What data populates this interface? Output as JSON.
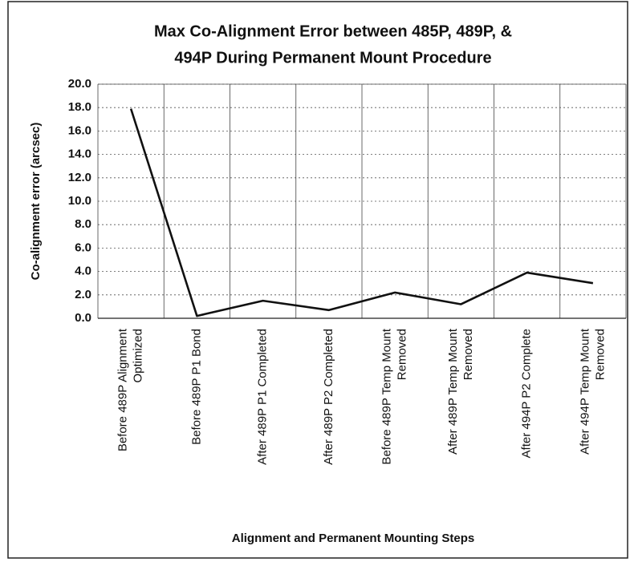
{
  "chart_data": {
    "type": "line",
    "title": [
      "Max Co-Alignment Error between 485P, 489P, &",
      "494P During Permanent Mount Procedure"
    ],
    "x_label": "Alignment and Permanent Mounting Steps",
    "y_label": "Co-alignment error (arcsec)",
    "categories": [
      "Before 489P Alignment Optimized",
      "Before 489P P1 Bond",
      "After 489P P1 Completed",
      "After 489P P2 Completed",
      "Before 489P Temp Mount Removed",
      "After 489P Temp Mount Removed",
      "After 494P P2 Complete",
      "After 494P Temp Mount Removed"
    ],
    "series": [
      {
        "name": "Max Co-Alignment Error",
        "color": "#111111",
        "values": [
          17.9,
          0.2,
          1.5,
          0.7,
          2.2,
          1.2,
          3.9,
          3.0
        ]
      }
    ],
    "ylim": [
      0,
      20
    ],
    "yticks": [
      {
        "value": 0,
        "label": "0.0"
      },
      {
        "value": 2,
        "label": "2.0"
      },
      {
        "value": 4,
        "label": "4.0"
      },
      {
        "value": 6,
        "label": "6.0"
      },
      {
        "value": 8,
        "label": "8.0"
      },
      {
        "value": 10,
        "label": "10.0"
      },
      {
        "value": 12,
        "label": "12.0"
      },
      {
        "value": 14,
        "label": "14.0"
      },
      {
        "value": 16,
        "label": "16.0"
      },
      {
        "value": 18,
        "label": "18.0"
      },
      {
        "value": 20,
        "label": "20.0"
      }
    ],
    "grid": true
  }
}
